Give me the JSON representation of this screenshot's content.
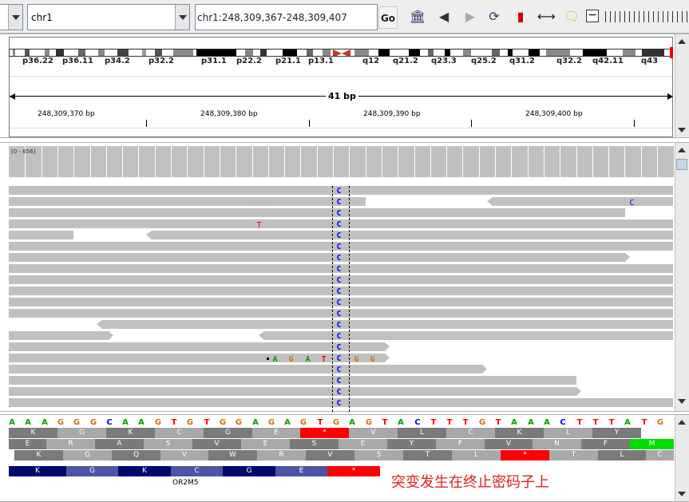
{
  "toolbar": {
    "genome": "",
    "chromosome": "chr1",
    "locus": "chr1:248,309,367-248,309,407",
    "go_label": "Go"
  },
  "ideogram": {
    "band_labels": [
      "p36.22",
      "p36.11",
      "p34.2",
      "p32.2",
      "p31.1",
      "p22.2",
      "p21.1",
      "p13.1",
      "q12",
      "q21.2",
      "q23.3",
      "q25.2",
      "q31.2",
      "q32.2",
      "q42.11",
      "q43"
    ]
  },
  "ruler": {
    "width_label": "41 bp",
    "ticks": [
      "248,309,370 bp",
      "248,309,380 bp",
      "248,309,390 bp",
      "248,309,400 bp"
    ]
  },
  "coverage": {
    "range": "[0 - 656]"
  },
  "alignments": {
    "variant_base": "C",
    "mismatch_t": "T",
    "mismatch_c": "C",
    "insert_bases": [
      "A",
      "G",
      "A",
      "T",
      "G",
      "G"
    ]
  },
  "sequence": {
    "bases": [
      "A",
      "A",
      "A",
      "G",
      "G",
      "G",
      "C",
      "A",
      "A",
      "G",
      "T",
      "G",
      "T",
      "G",
      "G",
      "A",
      "G",
      "A",
      "G",
      "T",
      "G",
      "A",
      "G",
      "T",
      "A",
      "C",
      "T",
      "T",
      "T",
      "G",
      "T",
      "A",
      "A",
      "A",
      "C",
      "T",
      "T",
      "T",
      "A",
      "T",
      "G"
    ]
  },
  "translation": {
    "frame1": [
      "K",
      "G",
      "K",
      "C",
      "G",
      "E",
      "*",
      "V",
      "L",
      "C",
      "K",
      "L",
      "Y"
    ],
    "frame2": [
      "E",
      "R",
      "A",
      "S",
      "V",
      "E",
      "S",
      "E",
      "Y",
      "F",
      "V",
      "N",
      "F",
      "M"
    ],
    "frame3": [
      "K",
      "G",
      "Q",
      "V",
      "W",
      "R",
      "V",
      "S",
      "T",
      "L",
      "*",
      "T",
      "L",
      "C"
    ]
  },
  "gene": {
    "aa": [
      "K",
      "G",
      "K",
      "C",
      "G",
      "E",
      "*"
    ],
    "name": "OR2M5"
  },
  "annotation": {
    "note": "突变发生在终止密码子上"
  },
  "colors": {
    "A": "#00a000",
    "C": "#0000ff",
    "G": "#d17105",
    "T": "#ff0000",
    "stop": "#ff0000",
    "met": "#00e000",
    "gene": "#000a6e"
  }
}
